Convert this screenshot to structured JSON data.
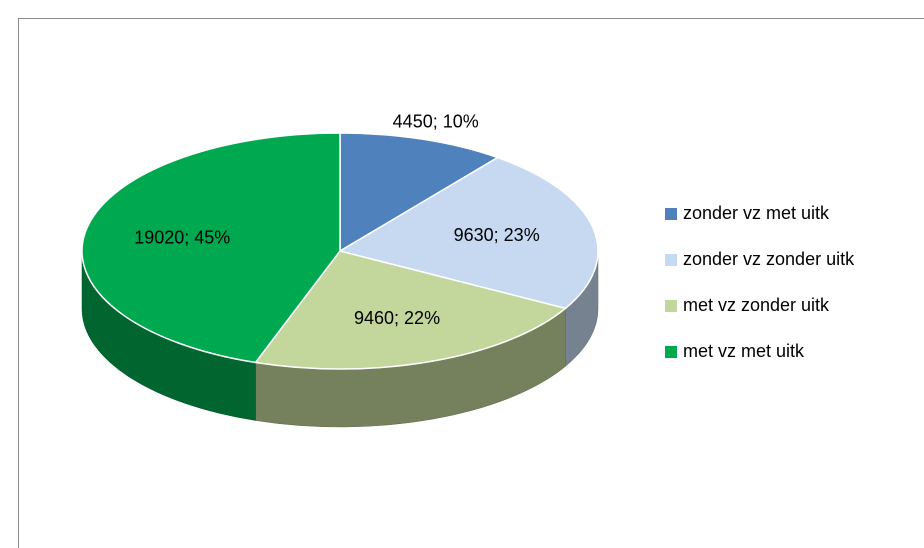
{
  "chart_data": {
    "type": "pie",
    "categories": [
      "zonder vz met uitk",
      "zonder vz zonder uitk",
      "met vz zonder uitk",
      "met vz met uitk"
    ],
    "values": [
      4450,
      9630,
      9460,
      19020
    ],
    "value_labels": [
      "4450; 10%",
      "9630; 23%",
      "9460; 22%",
      "19020; 45%"
    ],
    "colors": [
      "#4f81bd",
      "#c6d9f1",
      "#c3d69b",
      "#00a84f"
    ],
    "legend": "right",
    "three_d": true
  }
}
